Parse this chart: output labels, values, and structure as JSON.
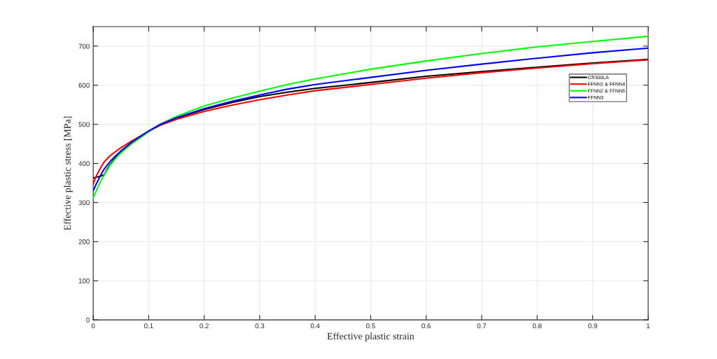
{
  "chart_data": {
    "type": "line",
    "xlabel": "Effective plastic strain",
    "ylabel": "Effective plastic stress [MPa]",
    "xlim": [
      0,
      1
    ],
    "ylim": [
      0,
      750
    ],
    "xticks": [
      0,
      0.1,
      0.2,
      0.3,
      0.4,
      0.5,
      0.6,
      0.7,
      0.8,
      0.9,
      1
    ],
    "yticks": [
      0,
      100,
      200,
      300,
      400,
      500,
      600,
      700
    ],
    "grid": true,
    "legend": "top right",
    "line_style": "solid",
    "marker": "none",
    "series": [
      {
        "name": "CR300LA",
        "color": "#000000",
        "x": [
          0,
          0.01,
          0.02,
          0.025,
          0.03,
          0.04,
          0.05,
          0.07,
          0.1,
          0.12,
          0.15,
          0.2,
          0.25,
          0.3,
          0.35,
          0.4,
          0.5,
          0.6,
          0.7,
          0.8,
          0.9,
          1
        ],
        "values": [
          363,
          366,
          371,
          385,
          396,
          414,
          429,
          453,
          482,
          499,
          516,
          538,
          556,
          571,
          582,
          592,
          607,
          623,
          635,
          646,
          657,
          666
        ]
      },
      {
        "name": "FFNN1 & FFNN4",
        "color": "#ff0000",
        "x": [
          0,
          0.005,
          0.01,
          0.015,
          0.02,
          0.03,
          0.04,
          0.05,
          0.07,
          0.1,
          0.12,
          0.15,
          0.2,
          0.25,
          0.3,
          0.35,
          0.4,
          0.5,
          0.6,
          0.7,
          0.8,
          0.9,
          1
        ],
        "values": [
          347,
          366,
          380,
          393,
          404,
          419,
          430,
          440,
          458,
          482,
          497,
          513,
          533,
          549,
          563,
          575,
          586,
          602,
          618,
          632,
          644,
          655,
          665
        ]
      },
      {
        "name": "FFNN2 & FFNN5",
        "color": "#00ff00",
        "x": [
          0,
          0.005,
          0.01,
          0.015,
          0.02,
          0.03,
          0.04,
          0.05,
          0.07,
          0.1,
          0.12,
          0.15,
          0.2,
          0.25,
          0.3,
          0.35,
          0.4,
          0.5,
          0.6,
          0.7,
          0.8,
          0.9,
          1
        ],
        "values": [
          312,
          328,
          344,
          358,
          371,
          394,
          412,
          427,
          451,
          481,
          500,
          520,
          547,
          567,
          585,
          602,
          616,
          641,
          662,
          681,
          698,
          712,
          725
        ]
      },
      {
        "name": "FFNN3",
        "color": "#0000ff",
        "x": [
          0,
          0.005,
          0.01,
          0.015,
          0.02,
          0.03,
          0.04,
          0.05,
          0.07,
          0.1,
          0.12,
          0.15,
          0.2,
          0.25,
          0.3,
          0.35,
          0.4,
          0.5,
          0.6,
          0.7,
          0.8,
          0.9,
          1
        ],
        "values": [
          330,
          346,
          360,
          374,
          386,
          404,
          419,
          432,
          455,
          483,
          499,
          517,
          540,
          559,
          575,
          590,
          602,
          620,
          638,
          654,
          669,
          683,
          695
        ]
      }
    ]
  }
}
